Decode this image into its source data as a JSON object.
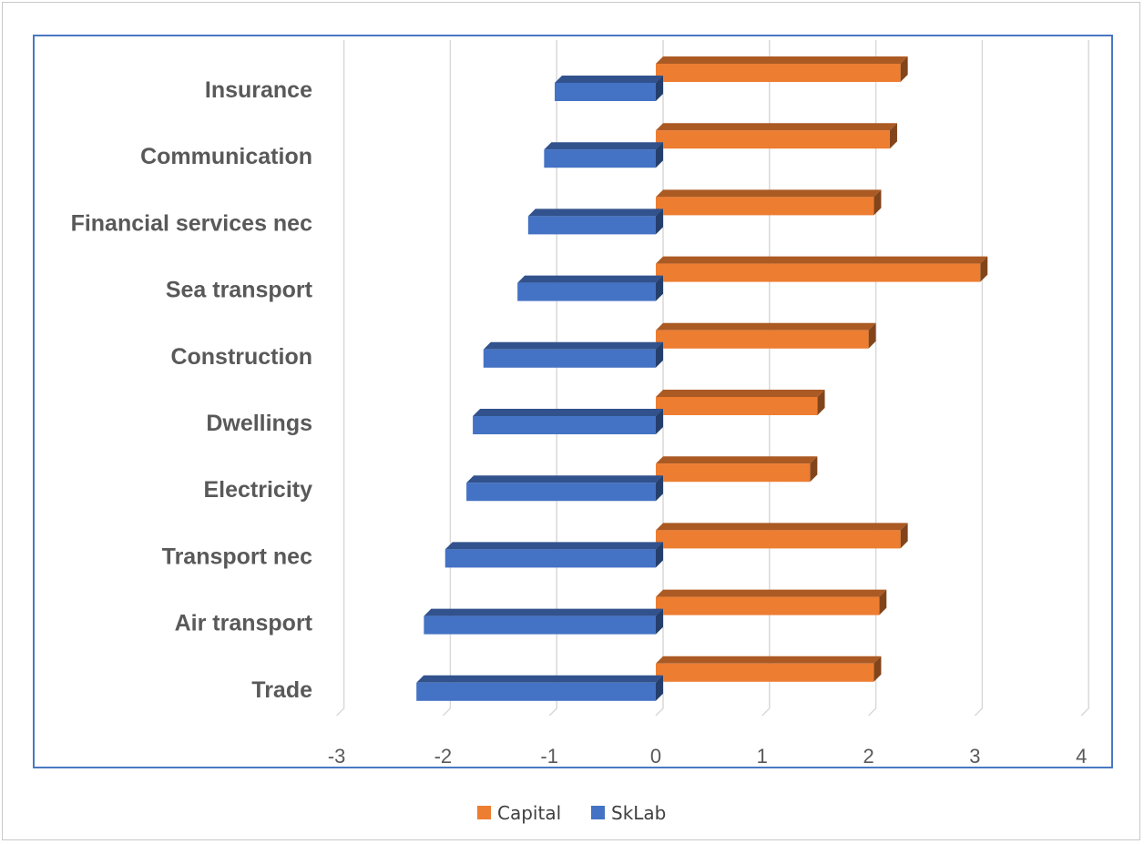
{
  "chart_data": {
    "type": "bar",
    "orientation": "horizontal",
    "categories": [
      "Insurance",
      "Communication",
      "Financial services nec",
      "Sea transport",
      "Construction",
      "Dwellings",
      "Electricity",
      "Transport nec",
      "Air transport",
      "Trade"
    ],
    "series": [
      {
        "name": "Capital",
        "color": "#ed7d31",
        "values": [
          2.3,
          2.2,
          2.05,
          3.05,
          2.0,
          1.52,
          1.45,
          2.3,
          2.1,
          2.05
        ]
      },
      {
        "name": "SkLab",
        "color": "#4472c4",
        "values": [
          -0.95,
          -1.05,
          -1.2,
          -1.3,
          -1.62,
          -1.72,
          -1.78,
          -1.98,
          -2.18,
          -2.25
        ]
      }
    ],
    "xlim": [
      -3,
      4
    ],
    "xticks": [
      "-3",
      "-2",
      "-1",
      "0",
      "1",
      "2",
      "3",
      "4"
    ],
    "grid": true,
    "legend": {
      "position": "bottom",
      "entries": [
        "Capital",
        "SkLab"
      ]
    }
  }
}
